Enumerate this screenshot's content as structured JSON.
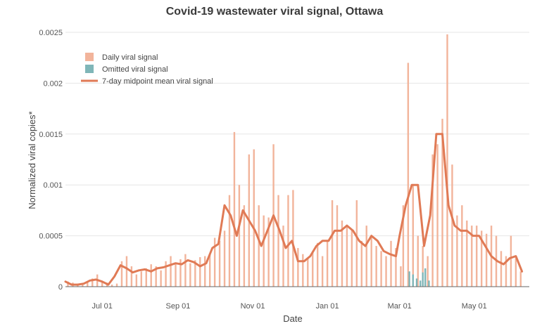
{
  "chart_data": {
    "type": "bar",
    "title": "Covid-19 wastewater viral signal, Ottawa",
    "xlabel": "Date",
    "ylabel": "Normalized viral copies*",
    "ylim": [
      0,
      0.0025
    ],
    "xlim": [
      "2020-06-01",
      "2021-06-15"
    ],
    "y_ticks": [
      {
        "value": 0,
        "label": "0"
      },
      {
        "value": 0.0005,
        "label": "0.0005"
      },
      {
        "value": 0.001,
        "label": "0.001"
      },
      {
        "value": 0.0015,
        "label": "0.0015"
      },
      {
        "value": 0.002,
        "label": "0.002"
      },
      {
        "value": 0.0025,
        "label": "0.0025"
      }
    ],
    "x_ticks": [
      {
        "date": "2020-07-01",
        "label": "Jul 01"
      },
      {
        "date": "2020-09-01",
        "label": "Sep 01"
      },
      {
        "date": "2020-11-01",
        "label": "Nov 01"
      },
      {
        "date": "2021-01-01",
        "label": "Jan 01"
      },
      {
        "date": "2021-03-01",
        "label": "Mar 01"
      },
      {
        "date": "2021-05-01",
        "label": "May 01"
      }
    ],
    "grid": true,
    "legend_position": "top-left",
    "colors": {
      "daily": "#f2b49b",
      "omitted": "#7fb6b8",
      "mean": "#e07a55",
      "grid": "#e6e6e6",
      "baseline": "#666666"
    },
    "series": [
      {
        "name": "Daily viral signal",
        "type": "bar",
        "x": [
          "2020-06-03",
          "2020-06-07",
          "2020-06-11",
          "2020-06-15",
          "2020-06-19",
          "2020-06-23",
          "2020-06-27",
          "2020-07-01",
          "2020-07-05",
          "2020-07-09",
          "2020-07-13",
          "2020-07-17",
          "2020-07-21",
          "2020-07-25",
          "2020-07-29",
          "2020-08-02",
          "2020-08-06",
          "2020-08-10",
          "2020-08-14",
          "2020-08-18",
          "2020-08-22",
          "2020-08-26",
          "2020-08-30",
          "2020-09-03",
          "2020-09-07",
          "2020-09-11",
          "2020-09-15",
          "2020-09-19",
          "2020-09-23",
          "2020-09-27",
          "2020-10-01",
          "2020-10-05",
          "2020-10-09",
          "2020-10-13",
          "2020-10-17",
          "2020-10-21",
          "2020-10-25",
          "2020-10-29",
          "2020-11-02",
          "2020-11-06",
          "2020-11-10",
          "2020-11-14",
          "2020-11-18",
          "2020-11-22",
          "2020-11-26",
          "2020-11-30",
          "2020-12-04",
          "2020-12-08",
          "2020-12-12",
          "2020-12-16",
          "2020-12-20",
          "2020-12-24",
          "2020-12-28",
          "2021-01-01",
          "2021-01-05",
          "2021-01-09",
          "2021-01-13",
          "2021-01-17",
          "2021-01-21",
          "2021-01-25",
          "2021-01-29",
          "2021-02-02",
          "2021-02-06",
          "2021-02-10",
          "2021-02-14",
          "2021-02-18",
          "2021-02-22",
          "2021-02-26",
          "2021-03-02",
          "2021-03-04",
          "2021-03-08",
          "2021-03-12",
          "2021-03-16",
          "2021-03-20",
          "2021-03-24",
          "2021-03-28",
          "2021-04-01",
          "2021-04-05",
          "2021-04-09",
          "2021-04-13",
          "2021-04-17",
          "2021-04-21",
          "2021-04-25",
          "2021-04-29",
          "2021-05-03",
          "2021-05-07",
          "2021-05-11",
          "2021-05-15",
          "2021-05-19",
          "2021-05-23",
          "2021-05-27",
          "2021-05-31",
          "2021-06-04",
          "2021-06-08"
        ],
        "values": [
          5e-05,
          4e-05,
          3e-05,
          3e-05,
          4e-05,
          8e-05,
          0.00012,
          5e-05,
          4e-05,
          2e-05,
          3e-05,
          0.00025,
          0.0003,
          0.0002,
          0.00012,
          0.00015,
          0.00018,
          0.00022,
          0.0002,
          0.00016,
          0.00025,
          0.0003,
          0.00022,
          0.00027,
          0.00032,
          0.00023,
          0.00026,
          0.00029,
          0.0003,
          0.00032,
          0.00048,
          0.00045,
          0.00055,
          0.0009,
          0.00152,
          0.001,
          0.0008,
          0.0013,
          0.00135,
          0.0008,
          0.0007,
          0.00068,
          0.0014,
          0.0009,
          0.0006,
          0.0009,
          0.00095,
          0.00038,
          0.00032,
          0.00028,
          0.00035,
          0.00043,
          0.0003,
          0.00045,
          0.00085,
          0.0008,
          0.00065,
          0.0006,
          0.00055,
          0.00085,
          0.00045,
          0.0006,
          0.0005,
          0.0004,
          0.00035,
          0.0003,
          0.00045,
          0.00038,
          0.0002,
          0.0008,
          0.0022,
          0.001,
          0.0005,
          0.0004,
          0.0003,
          0.0013,
          0.0014,
          0.00165,
          0.00248,
          0.0012,
          0.0007,
          0.0008,
          0.00065,
          0.0006,
          0.0006,
          0.00055,
          0.00052,
          0.0006,
          0.0005,
          0.00035,
          0.0003,
          0.0005,
          0.00028,
          0.00015
        ]
      },
      {
        "name": "Omitted viral signal",
        "type": "bar",
        "x": [
          "2021-03-09",
          "2021-03-12",
          "2021-03-15",
          "2021-03-18",
          "2021-03-20",
          "2021-03-22",
          "2021-03-25"
        ],
        "values": [
          0.00015,
          0.00012,
          8e-05,
          6e-05,
          0.00014,
          0.00018,
          6e-05
        ]
      },
      {
        "name": "7-day midpoint mean viral signal",
        "type": "line",
        "x": [
          "2020-06-01",
          "2020-06-06",
          "2020-06-11",
          "2020-06-16",
          "2020-06-21",
          "2020-06-26",
          "2020-07-01",
          "2020-07-06",
          "2020-07-11",
          "2020-07-16",
          "2020-07-21",
          "2020-07-26",
          "2020-07-31",
          "2020-08-05",
          "2020-08-10",
          "2020-08-15",
          "2020-08-20",
          "2020-08-25",
          "2020-08-30",
          "2020-09-04",
          "2020-09-09",
          "2020-09-14",
          "2020-09-19",
          "2020-09-24",
          "2020-09-29",
          "2020-10-04",
          "2020-10-09",
          "2020-10-14",
          "2020-10-19",
          "2020-10-24",
          "2020-10-29",
          "2020-11-03",
          "2020-11-08",
          "2020-11-13",
          "2020-11-18",
          "2020-11-23",
          "2020-11-28",
          "2020-12-03",
          "2020-12-08",
          "2020-12-13",
          "2020-12-18",
          "2020-12-23",
          "2020-12-28",
          "2021-01-02",
          "2021-01-07",
          "2021-01-12",
          "2021-01-17",
          "2021-01-22",
          "2021-01-27",
          "2021-02-01",
          "2021-02-06",
          "2021-02-11",
          "2021-02-16",
          "2021-02-21",
          "2021-02-26",
          "2021-03-01",
          "2021-03-06",
          "2021-03-11",
          "2021-03-16",
          "2021-03-21",
          "2021-03-26",
          "2021-03-31",
          "2021-04-05",
          "2021-04-10",
          "2021-04-15",
          "2021-04-20",
          "2021-04-25",
          "2021-04-30",
          "2021-05-05",
          "2021-05-10",
          "2021-05-15",
          "2021-05-20",
          "2021-05-25",
          "2021-05-30",
          "2021-06-04",
          "2021-06-09"
        ],
        "values": [
          5e-05,
          2e-05,
          2e-05,
          3e-05,
          6e-05,
          7e-05,
          5e-05,
          2e-05,
          0.0001,
          0.00021,
          0.00018,
          0.00014,
          0.00016,
          0.00017,
          0.00015,
          0.00018,
          0.00019,
          0.00021,
          0.00023,
          0.00022,
          0.00026,
          0.00024,
          0.0002,
          0.00023,
          0.00038,
          0.00042,
          0.0008,
          0.0007,
          0.0005,
          0.00075,
          0.00065,
          0.00055,
          0.0004,
          0.00055,
          0.0007,
          0.00055,
          0.00038,
          0.00045,
          0.00025,
          0.00025,
          0.0003,
          0.0004,
          0.00045,
          0.00045,
          0.00055,
          0.00055,
          0.0006,
          0.00055,
          0.00045,
          0.0004,
          0.0005,
          0.00045,
          0.00035,
          0.00032,
          0.0003,
          0.0005,
          0.0008,
          0.001,
          0.001,
          0.0004,
          0.0007,
          0.0015,
          0.0015,
          0.0008,
          0.0006,
          0.00055,
          0.00055,
          0.0005,
          0.0005,
          0.0004,
          0.0003,
          0.00025,
          0.00022,
          0.00028,
          0.0003,
          0.00015
        ]
      }
    ]
  }
}
